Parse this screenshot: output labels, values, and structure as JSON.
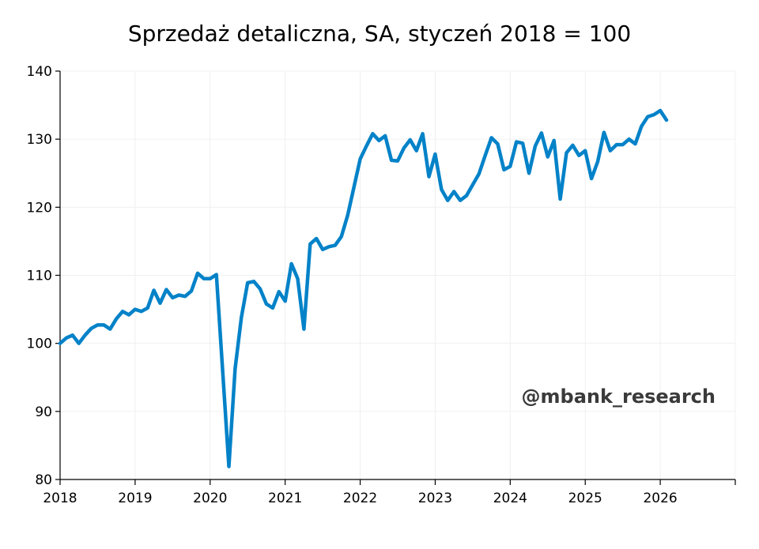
{
  "chart_data": {
    "type": "line",
    "title": "Sprzedaż detaliczna, SA, styczeń 2018 = 100",
    "xlabel": "",
    "ylabel": "",
    "xlim": [
      2018,
      2027
    ],
    "ylim": [
      80,
      140
    ],
    "x_ticks": [
      "2018",
      "2019",
      "2020",
      "2021",
      "2022",
      "2023",
      "2024",
      "2025",
      "2026"
    ],
    "y_ticks": [
      "80",
      "90",
      "100",
      "110",
      "120",
      "130",
      "140"
    ],
    "grid": true,
    "watermark": "@mbank_research",
    "series": [
      {
        "name": "Sprzedaż detaliczna",
        "color": "#0382C8",
        "start": "2018-01",
        "frequency": "monthly",
        "values": [
          100.0,
          100.8,
          101.2,
          100.0,
          101.2,
          102.2,
          102.7,
          102.7,
          102.1,
          103.6,
          104.7,
          104.2,
          105.0,
          104.7,
          105.2,
          107.8,
          105.9,
          107.9,
          106.7,
          107.1,
          106.9,
          107.7,
          110.3,
          109.5,
          109.5,
          110.1,
          96.0,
          81.9,
          96.3,
          103.8,
          108.9,
          109.1,
          108.0,
          105.8,
          105.2,
          107.6,
          106.2,
          111.7,
          109.5,
          102.1,
          114.6,
          115.4,
          113.8,
          114.2,
          114.4,
          115.7,
          118.8,
          122.9,
          127.1,
          129.0,
          130.8,
          129.8,
          130.5,
          126.9,
          126.8,
          128.7,
          129.9,
          128.3,
          130.8,
          124.5,
          127.8,
          122.6,
          121.0,
          122.3,
          121.0,
          121.7,
          123.3,
          124.9,
          127.6,
          130.2,
          129.3,
          125.5,
          126.0,
          129.6,
          129.4,
          125.0,
          129.0,
          130.9,
          127.4,
          129.8,
          121.2,
          128.0,
          129.1,
          127.6,
          128.3,
          124.2,
          126.7,
          131.0,
          128.3,
          129.2,
          129.2,
          130.0,
          129.3,
          131.9,
          133.3,
          133.6,
          134.2,
          132.8
        ]
      }
    ]
  }
}
